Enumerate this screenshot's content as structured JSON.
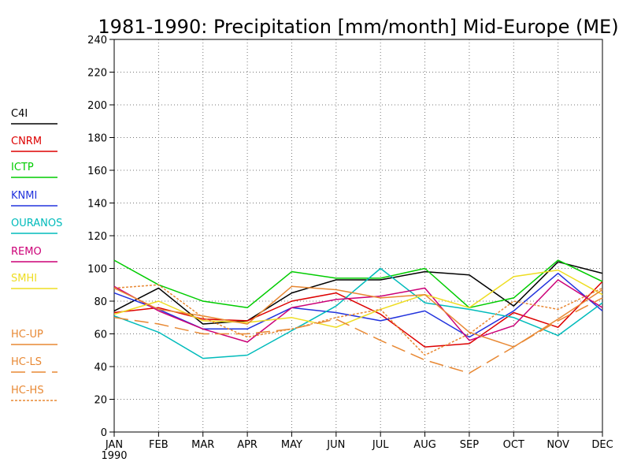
{
  "chart_data": {
    "type": "line",
    "title": "1981-1990: Precipitation [mm/month] Mid-Europe (ME)",
    "categories": [
      "JAN",
      "FEB",
      "MAR",
      "APR",
      "MAY",
      "JUN",
      "JUL",
      "AUG",
      "SEP",
      "OCT",
      "NOV",
      "DEC"
    ],
    "x_sublabel": "1990",
    "ylim": [
      0,
      240
    ],
    "yticks": [
      0,
      20,
      40,
      60,
      80,
      100,
      120,
      140,
      160,
      180,
      200,
      220,
      240
    ],
    "grid": true,
    "legend_position": "left",
    "series": [
      {
        "name": "C4I",
        "color": "#000000",
        "dash": "solid",
        "values": [
          74,
          88,
          66,
          68,
          85,
          93,
          93,
          98,
          96,
          77,
          104,
          97
        ]
      },
      {
        "name": "CNRM",
        "color": "#dd0000",
        "dash": "solid",
        "values": [
          73,
          76,
          69,
          68,
          80,
          85,
          72,
          52,
          54,
          73,
          64,
          92
        ]
      },
      {
        "name": "ICTP",
        "color": "#00cc00",
        "dash": "solid",
        "values": [
          105,
          90,
          80,
          76,
          98,
          94,
          94,
          100,
          76,
          82,
          105,
          92
        ]
      },
      {
        "name": "KNMI",
        "color": "#2233dd",
        "dash": "solid",
        "values": [
          85,
          75,
          63,
          63,
          76,
          73,
          68,
          74,
          58,
          74,
          97,
          74
        ]
      },
      {
        "name": "OURANOS",
        "color": "#00bbbb",
        "dash": "solid",
        "values": [
          71,
          61,
          45,
          47,
          62,
          77,
          100,
          79,
          75,
          70,
          59,
          79
        ]
      },
      {
        "name": "REMO",
        "color": "#cc0077",
        "dash": "solid",
        "values": [
          89,
          74,
          63,
          55,
          76,
          81,
          83,
          88,
          56,
          65,
          93,
          76
        ]
      },
      {
        "name": "SMHI",
        "color": "#eedd22",
        "dash": "solid",
        "values": [
          72,
          80,
          68,
          67,
          70,
          64,
          75,
          84,
          76,
          95,
          99,
          84
        ]
      },
      {
        "name": "HC-UP",
        "color": "#e88833",
        "dash": "solid",
        "values": [
          88,
          75,
          71,
          66,
          89,
          87,
          82,
          84,
          61,
          52,
          69,
          87
        ]
      },
      {
        "name": "HC-LS",
        "color": "#e88833",
        "dash": "long",
        "values": [
          70,
          66,
          60,
          60,
          63,
          69,
          56,
          44,
          36,
          52,
          68,
          82
        ]
      },
      {
        "name": "HC-HS",
        "color": "#e88833",
        "dash": "short",
        "values": [
          88,
          90,
          70,
          58,
          63,
          70,
          75,
          47,
          60,
          80,
          75,
          88
        ]
      }
    ]
  }
}
